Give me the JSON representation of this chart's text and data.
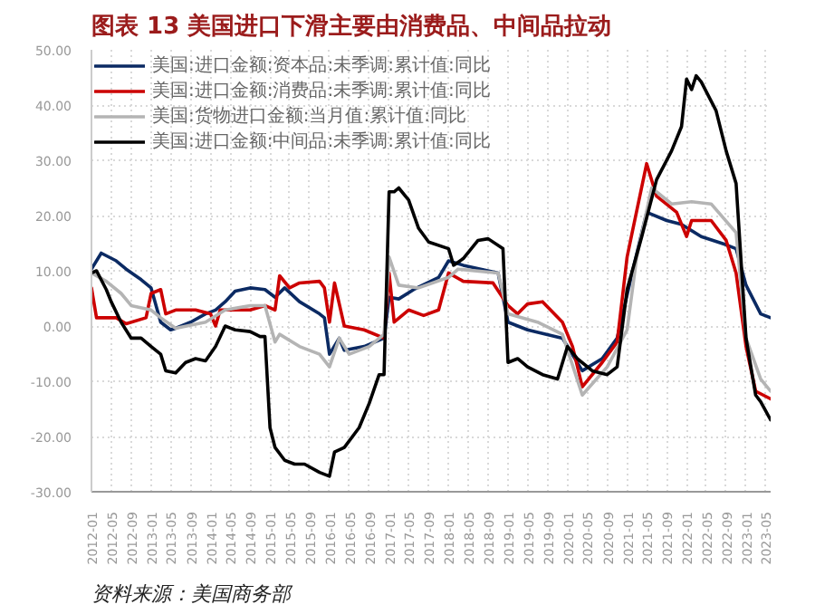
{
  "chart_data": {
    "type": "line",
    "title": "图表 13    美国进口下滑主要由消费品、中间品拉动",
    "annotations": [
      "资料来源：美国商务部"
    ],
    "legend": "top",
    "grid": true,
    "marker": "none",
    "line_style": "solid",
    "xlim": [
      "2012-01",
      "2023-06"
    ],
    "xticks": [
      "2012-01",
      "2012-05",
      "2012-09",
      "2013-01",
      "2013-05",
      "2013-09",
      "2014-01",
      "2014-05",
      "2014-09",
      "2015-01",
      "2015-05",
      "2015-09",
      "2016-01",
      "2016-05",
      "2016-09",
      "2017-01",
      "2017-05",
      "2017-09",
      "2018-01",
      "2018-05",
      "2018-09",
      "2019-01",
      "2019-05",
      "2019-09",
      "2020-01",
      "2020-05",
      "2020-09",
      "2021-01",
      "2021-05",
      "2021-09",
      "2022-01",
      "2022-05",
      "2022-09",
      "2023-01",
      "2023-05"
    ],
    "ylim": [
      -30,
      50
    ],
    "yticks": [
      {
        "value": -30,
        "label": "-30.00"
      },
      {
        "value": -20,
        "label": "-20.00"
      },
      {
        "value": -10,
        "label": "-10.00"
      },
      {
        "value": 0,
        "label": "0.00"
      },
      {
        "value": 10,
        "label": "10.00"
      },
      {
        "value": 20,
        "label": "20.00"
      },
      {
        "value": 30,
        "label": "30.00"
      },
      {
        "value": 40,
        "label": "40.00"
      },
      {
        "value": 50,
        "label": "50.00"
      }
    ],
    "series": [
      {
        "name": "美国:进口金额:资本品:未季调:累计值:同比",
        "color": "#0b2a63",
        "x": [
          "2012-01",
          "2012-03",
          "2012-06",
          "2012-08",
          "2012-11",
          "2013-01",
          "2013-03",
          "2013-05",
          "2013-06",
          "2013-09",
          "2013-12",
          "2014-02",
          "2014-04",
          "2014-06",
          "2014-09",
          "2014-12",
          "2015-02",
          "2015-04",
          "2015-07",
          "2015-11",
          "2015-12",
          "2016-01",
          "2016-03",
          "2016-04",
          "2016-08",
          "2016-12",
          "2017-01",
          "2017-03",
          "2017-06",
          "2017-11",
          "2018-01",
          "2018-04",
          "2018-11",
          "2019-01",
          "2019-05",
          "2019-12",
          "2020-04",
          "2020-08",
          "2020-11",
          "2021-02",
          "2021-05",
          "2021-09",
          "2021-12",
          "2022-04",
          "2022-09",
          "2022-11",
          "2023-01",
          "2023-04",
          "2023-06"
        ],
        "values": [
          10.3,
          13.2,
          11.8,
          10.3,
          8.4,
          6.9,
          0.7,
          -0.7,
          -0.4,
          0.7,
          2.2,
          2.9,
          4.4,
          6.3,
          6.9,
          6.6,
          5.2,
          6.9,
          4.4,
          2.2,
          1.5,
          -5.1,
          -2.2,
          -4.4,
          -3.7,
          -2.2,
          5.2,
          4.9,
          6.6,
          8.8,
          11.8,
          11,
          9.6,
          0.7,
          -0.7,
          -2.2,
          -8.1,
          -5.9,
          -2.2,
          9.6,
          20.6,
          19.1,
          18.4,
          16.2,
          14.7,
          14,
          7.4,
          2.2,
          1.5
        ]
      },
      {
        "name": "美国:进口金额:消费品:未季调:累计值:同比",
        "color": "#cc0000",
        "x": [
          "2012-01",
          "2012-02",
          "2012-06",
          "2012-08",
          "2012-12",
          "2013-01",
          "2013-03",
          "2013-04",
          "2013-06",
          "2013-10",
          "2014-01",
          "2014-02",
          "2014-03",
          "2014-09",
          "2014-12",
          "2015-02",
          "2015-03",
          "2015-05",
          "2015-07",
          "2015-11",
          "2015-12",
          "2016-01",
          "2016-02",
          "2016-04",
          "2016-08",
          "2016-12",
          "2017-01",
          "2017-02",
          "2017-05",
          "2017-08",
          "2017-11",
          "2018-01",
          "2018-04",
          "2018-10",
          "2019-01",
          "2019-03",
          "2019-05",
          "2019-08",
          "2019-12",
          "2020-02",
          "2020-04",
          "2020-08",
          "2020-11",
          "2021-01",
          "2021-02",
          "2021-05",
          "2021-07",
          "2021-11",
          "2022-01",
          "2022-02",
          "2022-06",
          "2022-09",
          "2022-11",
          "2023-01",
          "2023-03",
          "2023-06"
        ],
        "values": [
          6.9,
          1.5,
          1.5,
          0.4,
          1.5,
          5.9,
          6.6,
          2.2,
          2.9,
          2.9,
          2.2,
          0,
          2.9,
          2.9,
          3.7,
          2.9,
          9.1,
          6.9,
          7.8,
          8.1,
          6.9,
          0.7,
          7.8,
          0,
          -0.7,
          -2.2,
          9.6,
          0.7,
          2.9,
          1.9,
          2.9,
          9.6,
          8.1,
          7.8,
          3.7,
          2.2,
          4,
          4.4,
          0.7,
          -3.7,
          -11,
          -6.6,
          -2.9,
          12.5,
          16.9,
          29.4,
          23.5,
          20.6,
          16.2,
          19.1,
          19.1,
          15.5,
          9.6,
          -3.7,
          -11.8,
          -13.2
        ]
      },
      {
        "name": "美国:货物进口金额:当月值:累计值:同比",
        "color": "#b4b4b4",
        "x": [
          "2012-01",
          "2012-04",
          "2012-07",
          "2012-09",
          "2013-01",
          "2013-03",
          "2013-06",
          "2013-12",
          "2014-04",
          "2014-09",
          "2014-12",
          "2015-02",
          "2015-03",
          "2015-07",
          "2015-11",
          "2016-01",
          "2016-03",
          "2016-05",
          "2016-09",
          "2016-12",
          "2017-01",
          "2017-03",
          "2017-07",
          "2018-01",
          "2018-03",
          "2018-11",
          "2019-01",
          "2019-07",
          "2019-12",
          "2020-04",
          "2020-09",
          "2021-01",
          "2021-03",
          "2021-06",
          "2021-10",
          "2022-02",
          "2022-06",
          "2022-11",
          "2023-01",
          "2023-04",
          "2023-06"
        ],
        "values": [
          9.6,
          8.1,
          5.9,
          3.7,
          2.9,
          1.5,
          -0.4,
          0.7,
          2.9,
          3.7,
          3.7,
          -2.9,
          -1.5,
          -3.7,
          -5.1,
          -7.4,
          -2.2,
          -5.1,
          -3.7,
          -1.5,
          12.5,
          7.4,
          6.9,
          8.8,
          10.3,
          9.6,
          2.2,
          0.7,
          -1.5,
          -12.5,
          -7.4,
          -0.7,
          12.5,
          25,
          22.1,
          22.5,
          22.1,
          16.9,
          -2.2,
          -9.6,
          -11.8
        ]
      },
      {
        "name": "美国:进口金额:中间品:未季调:累计值:同比",
        "color": "#000000",
        "x": [
          "2012-01",
          "2012-02",
          "2012-04",
          "2012-05",
          "2012-07",
          "2012-09",
          "2012-11",
          "2013-01",
          "2013-03",
          "2013-04",
          "2013-06",
          "2013-08",
          "2013-10",
          "2013-12",
          "2014-02",
          "2014-04",
          "2014-06",
          "2014-09",
          "2014-11",
          "2014-12",
          "2015-01",
          "2015-02",
          "2015-04",
          "2015-06",
          "2015-08",
          "2015-11",
          "2016-01",
          "2016-02",
          "2016-04",
          "2016-07",
          "2016-09",
          "2016-11",
          "2016-12",
          "2017-01",
          "2017-02",
          "2017-03",
          "2017-05",
          "2017-07",
          "2017-09",
          "2018-01",
          "2018-02",
          "2018-04",
          "2018-07",
          "2018-09",
          "2018-12",
          "2019-01",
          "2019-03",
          "2019-05",
          "2019-08",
          "2019-11",
          "2020-01",
          "2020-03",
          "2020-06",
          "2020-09",
          "2020-11",
          "2021-01",
          "2021-04",
          "2021-07",
          "2021-10",
          "2021-12",
          "2022-01",
          "2022-02",
          "2022-03",
          "2022-04",
          "2022-07",
          "2022-09",
          "2022-11",
          "2023-01",
          "2023-03",
          "2023-04",
          "2023-06"
        ],
        "values": [
          9.6,
          10,
          6.6,
          4.4,
          0.7,
          -2.2,
          -2.2,
          -3.7,
          -5.1,
          -8.1,
          -8.5,
          -6.6,
          -5.9,
          -6.3,
          -3.7,
          0,
          -0.7,
          -1,
          -1.9,
          -1.9,
          -18.4,
          -22,
          -24.3,
          -25,
          -25,
          -26.5,
          -27.2,
          -22.8,
          -22,
          -18.4,
          -14,
          -8.8,
          -8.8,
          24.3,
          24.3,
          25,
          22.8,
          17.7,
          15.2,
          14,
          11,
          12.2,
          15.5,
          15.8,
          14,
          -6.6,
          -5.9,
          -7.4,
          -8.8,
          -9.6,
          -3.7,
          -5.9,
          -8.1,
          -8.8,
          -7.4,
          6.6,
          16.2,
          26.5,
          31.7,
          36.1,
          44.7,
          42.8,
          45.3,
          44.2,
          39,
          31.7,
          25.8,
          -2.2,
          -12.5,
          -13.7,
          -17
        ]
      }
    ]
  }
}
